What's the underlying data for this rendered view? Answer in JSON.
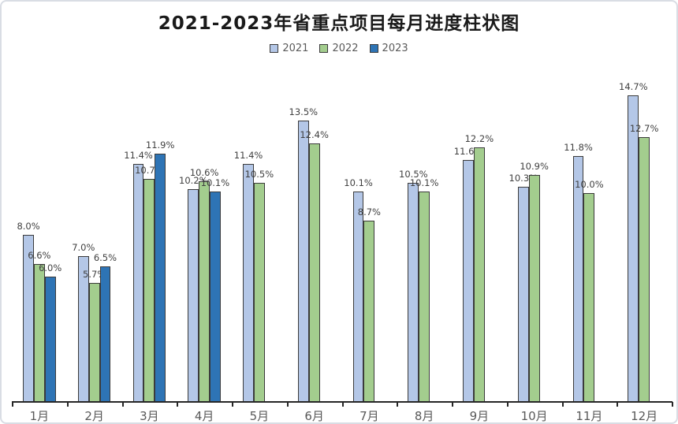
{
  "title": "2021-2023年省重点项目每月进度柱状图",
  "colors": {
    "series_2021": "#b4c7e7",
    "series_2022": "#a3cd8e",
    "series_2023": "#2e74b5",
    "bar_border": "#3b3b3b",
    "axis_line": "#262626",
    "value_label_text": "#404040",
    "axis_label_text": "#595959",
    "frame_border": "#d9dde4",
    "background": "#ffffff"
  },
  "chart_data": {
    "type": "bar",
    "title": "2021-2023年省重点项目每月进度柱状图",
    "xlabel": "",
    "ylabel": "",
    "value_unit": "%",
    "ylim": [
      0,
      15
    ],
    "grid": false,
    "y_axis_shown": false,
    "legend_position": "top",
    "data_labels_shown": true,
    "categories": [
      "1月",
      "2月",
      "3月",
      "4月",
      "5月",
      "6月",
      "7月",
      "8月",
      "9月",
      "10月",
      "11月",
      "12月"
    ],
    "series": [
      {
        "name": "2021",
        "color": "#b4c7e7",
        "values": [
          8.0,
          7.0,
          11.4,
          10.2,
          11.4,
          13.5,
          10.1,
          10.5,
          11.6,
          10.3,
          11.8,
          14.7
        ],
        "labels": [
          "8.0%",
          "7.0%",
          "11.4%",
          "10.2%",
          "11.4%",
          "13.5%",
          "10.1%",
          "10.5%",
          "11.6%",
          "10.3%",
          "11.8%",
          "14.7%"
        ]
      },
      {
        "name": "2022",
        "color": "#a3cd8e",
        "values": [
          6.6,
          5.7,
          10.7,
          10.6,
          10.5,
          12.4,
          8.7,
          10.1,
          12.2,
          10.9,
          10.0,
          12.7
        ],
        "labels": [
          "6.6%",
          "5.7%",
          "10.7%",
          "10.6%",
          "10.5%",
          "12.4%",
          "8.7%",
          "10.1%",
          "12.2%",
          "10.9%",
          "10.0%",
          "12.7%"
        ]
      },
      {
        "name": "2023",
        "color": "#2e74b5",
        "values": [
          6.0,
          6.5,
          11.9,
          10.1,
          null,
          null,
          null,
          null,
          null,
          null,
          null,
          null
        ],
        "labels": [
          "6.0%",
          "6.5%",
          "11.9%",
          "10.1%",
          null,
          null,
          null,
          null,
          null,
          null,
          null,
          null
        ]
      }
    ]
  }
}
